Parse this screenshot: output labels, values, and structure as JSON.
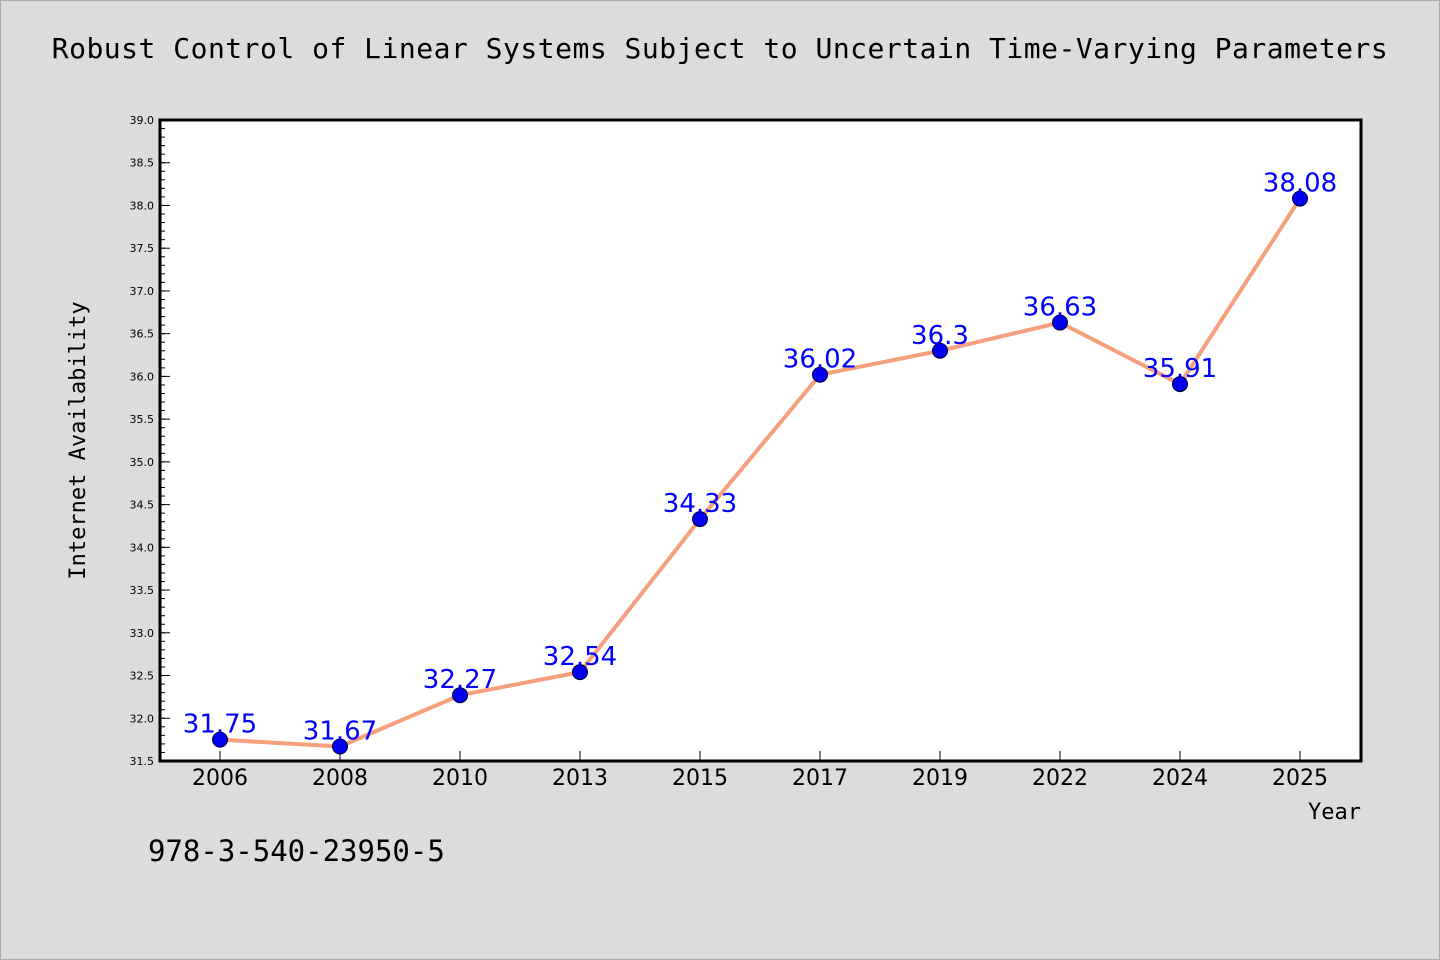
{
  "title": "Robust Control of Linear Systems Subject to Uncertain Time-Varying Parameters",
  "footer_text": "978-3-540-23950-5",
  "chart_data": {
    "type": "line",
    "title": "Robust Control of Linear Systems Subject to Uncertain Time-Varying Parameters",
    "xlabel": "Year",
    "ylabel": "Internet Availability",
    "categories": [
      "2006",
      "2008",
      "2010",
      "2013",
      "2015",
      "2017",
      "2019",
      "2022",
      "2024",
      "2025"
    ],
    "series": [
      {
        "values": [
          31.75,
          31.67,
          32.27,
          32.54,
          34.33,
          36.02,
          36.3,
          36.63,
          35.91,
          38.08
        ],
        "labels": [
          "31.75",
          "31.67",
          "32.27",
          "32.54",
          "34.33",
          "36.02",
          "36.3",
          "36.63",
          "35.91",
          "38.08"
        ],
        "line_color": "#f4a07c",
        "marker_color": "#0000ee"
      }
    ],
    "ylim": [
      31.5,
      39.0
    ],
    "yticks": [
      "31.5",
      "32.0",
      "32.5",
      "33.0",
      "33.5",
      "34.0",
      "34.5",
      "35.0",
      "35.5",
      "36.0",
      "36.5",
      "37.0",
      "37.5",
      "38.0",
      "38.5",
      "39.0"
    ],
    "label_color": "#0000ff",
    "plot_background": "#ffffff",
    "page_background": "#dcdcdc",
    "grid": false,
    "legend": "none"
  }
}
